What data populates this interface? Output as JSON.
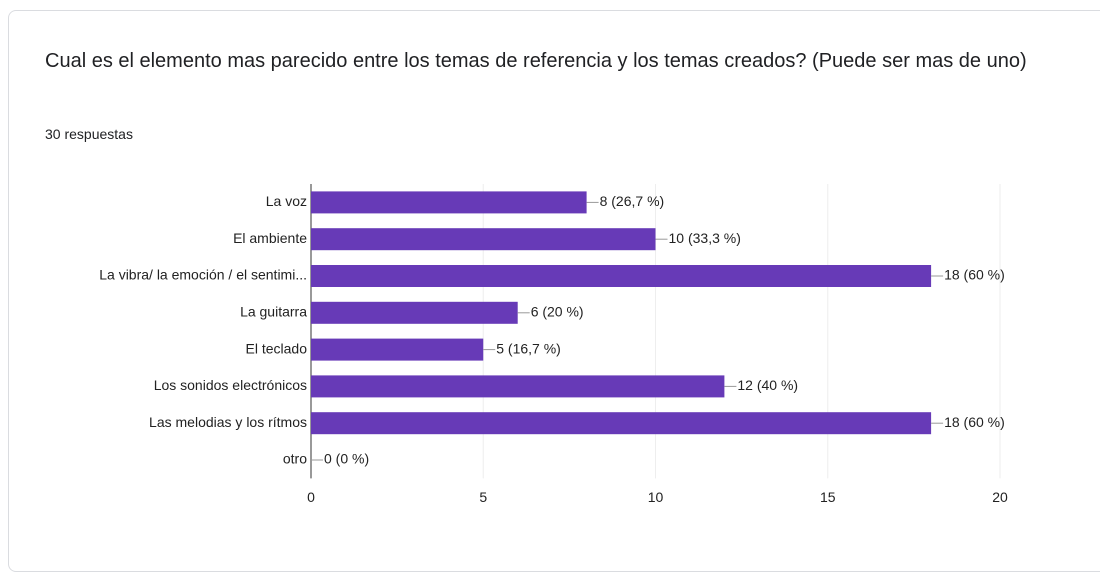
{
  "chart_data": {
    "type": "bar",
    "orientation": "horizontal",
    "title": "Cual es el elemento mas parecido entre los temas de referencia y los temas creados? (Puede ser mas de uno)",
    "subtitle": "30 respuestas",
    "categories": [
      "La voz",
      "El ambiente",
      "La vibra/ la emoción / el sentimi...",
      "La guitarra",
      "El teclado",
      "Los sonidos electrónicos",
      "Las melodias y los rítmos",
      "otro"
    ],
    "values": [
      8,
      10,
      18,
      6,
      5,
      12,
      18,
      0
    ],
    "value_labels": [
      "8 (26,7 %)",
      "10 (33,3 %)",
      "18 (60 %)",
      "6 (20 %)",
      "5 (16,7 %)",
      "12 (40 %)",
      "18 (60 %)",
      "0 (0 %)"
    ],
    "color": "#673ab7",
    "xlim": [
      0,
      20
    ],
    "xticks": [
      0,
      5,
      10,
      15,
      20
    ],
    "grid": true
  }
}
